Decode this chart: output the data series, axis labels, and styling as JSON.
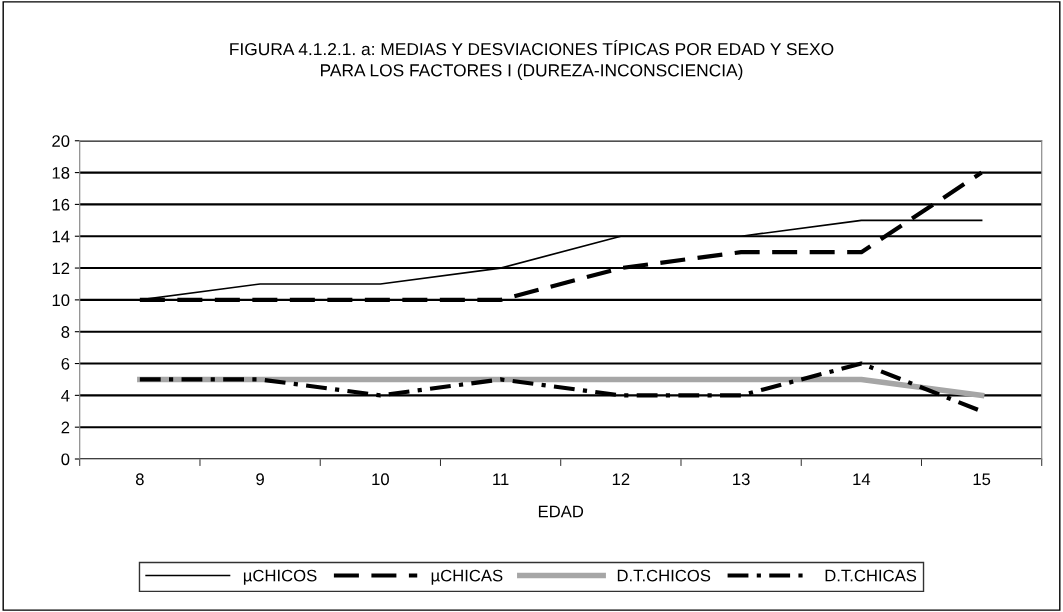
{
  "chart_data": {
    "type": "line",
    "title": "FIGURA 4.1.2.1. a: MEDIAS Y DESVIACIONES TÍPICAS POR EDAD Y SEXO\nPARA LOS FACTORES I (DUREZA-INCONSCIENCIA)",
    "xlabel": "EDAD",
    "categories": [
      "8",
      "9",
      "10",
      "11",
      "12",
      "13",
      "14",
      "15"
    ],
    "series": [
      {
        "name": "µCHICOS",
        "color": "#000000",
        "line_style": "solid",
        "values": [
          10,
          11,
          11,
          12,
          14,
          14,
          15,
          15
        ]
      },
      {
        "name": "µCHICAS",
        "color": "#000000",
        "line_style": "dashed",
        "values": [
          10,
          10,
          10,
          10,
          12,
          13,
          13,
          18
        ]
      },
      {
        "name": "D.T.CHICOS",
        "color": "#a6a6a6",
        "line_style": "solid",
        "values": [
          5,
          5,
          5,
          5,
          5,
          5,
          5,
          4
        ]
      },
      {
        "name": "D.T.CHICAS",
        "color": "#000000",
        "line_style": "dashdot",
        "values": [
          5,
          5,
          4,
          5,
          4,
          4,
          6,
          3
        ]
      }
    ],
    "ylim": [
      0,
      20
    ],
    "yticks": [
      0,
      2,
      4,
      6,
      8,
      10,
      12,
      14,
      16,
      18,
      20
    ],
    "grid": "y",
    "legend": "bottom",
    "marker": "none"
  }
}
